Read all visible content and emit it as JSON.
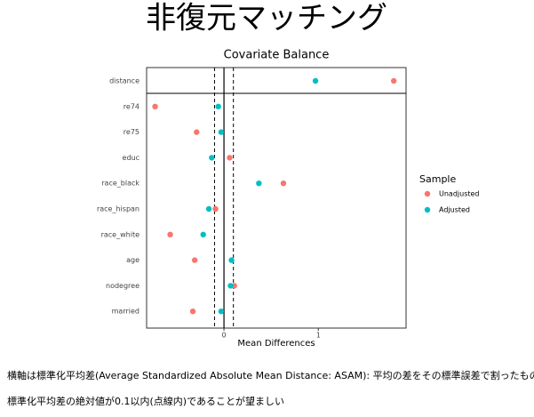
{
  "slide_title": "非復元マッチング",
  "chart_data": {
    "type": "dot",
    "title": "Covariate Balance",
    "xlabel": "Mean Differences",
    "categories": [
      "distance",
      "re74",
      "re75",
      "educ",
      "race_black",
      "race_hispan",
      "race_white",
      "age",
      "nodegree",
      "married"
    ],
    "series": [
      {
        "name": "Unadjusted",
        "color": "#F8766D",
        "values": [
          1.8,
          -0.73,
          -0.29,
          0.06,
          0.63,
          -0.09,
          -0.57,
          -0.31,
          0.11,
          -0.33
        ]
      },
      {
        "name": "Adjusted",
        "color": "#00BFC4",
        "values": [
          0.97,
          -0.06,
          -0.03,
          -0.13,
          0.37,
          -0.16,
          -0.22,
          0.08,
          0.07,
          -0.03
        ]
      }
    ],
    "xlim": [
      -0.82,
      1.93
    ],
    "xticks": [
      0,
      1
    ],
    "thresholds": [
      -0.1,
      0.1
    ],
    "legend_title": "Sample"
  },
  "notes": [
    "横軸は標準化平均差(Average Standardized Absolute Mean Distance: ASAM): 平均の差をその標準誤差で割ったもの",
    "標準化平均差の絶対値が0.1以内(点線内)であることが望ましい"
  ]
}
